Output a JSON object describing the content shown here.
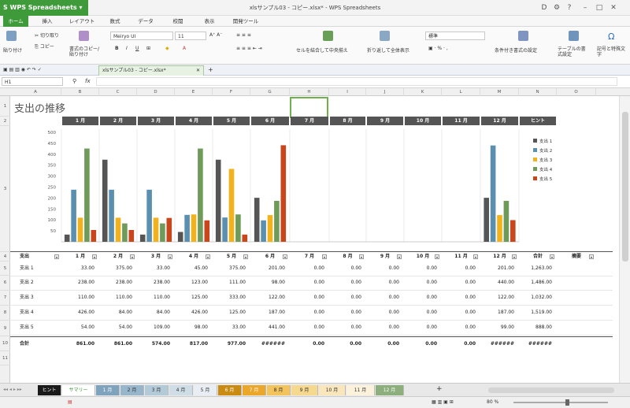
{
  "app": {
    "name": "WPS Spreadsheets",
    "title": "xlsサンプル03 - コピー.xlsx* - WPS Spreadsheets",
    "accent": "#3f9a3a"
  },
  "ribbon_tabs": [
    "ホーム",
    "挿入",
    "レイアウト",
    "数式",
    "データ",
    "校閲",
    "表示",
    "開発ツール"
  ],
  "ribbon": {
    "paste": "貼り付け",
    "cut": "切り取り",
    "copy": "コピー",
    "format_painter": "書式のコピー/貼り付け",
    "font": "Meiryo UI",
    "font_size": "11",
    "merge": "セルを結合して中央揃え",
    "wrap": "折り返して全体表示",
    "number_format": "標準",
    "conditional": "条件付き書式の設定",
    "table_format": "テーブルの書式設定",
    "symbols": "記号と特殊文字"
  },
  "doc_tab": "xlsサンプル03 - コピー.xlsx*",
  "formula": {
    "cell_ref": "H1",
    "fx": "fx"
  },
  "columns": [
    "A",
    "B",
    "C",
    "D",
    "E",
    "F",
    "G",
    "H",
    "I",
    "J",
    "K",
    "L",
    "M",
    "N",
    "O"
  ],
  "rows": [
    "1",
    "2",
    "3",
    "4",
    "5",
    "6",
    "7",
    "8",
    "9",
    "10",
    "11"
  ],
  "sheet_title": "支出の推移",
  "month_headers": [
    "1 月",
    "2 月",
    "3 月",
    "4 月",
    "5 月",
    "6 月",
    "7 月",
    "8 月",
    "9 月",
    "10 月",
    "11 月",
    "12 月",
    "ヒント"
  ],
  "table": {
    "header": [
      "支出",
      "1 月",
      "2 月",
      "3 月",
      "4 月",
      "5 月",
      "6 月",
      "7 月",
      "8 月",
      "9 月",
      "10 月",
      "11 月",
      "12 月",
      "合計",
      "摘要"
    ],
    "rows": [
      [
        "支出 1",
        "33.00",
        "375.00",
        "33.00",
        "45.00",
        "375.00",
        "201.00",
        "0.00",
        "0.00",
        "0.00",
        "0.00",
        "0.00",
        "201.00",
        "1,263.00"
      ],
      [
        "支出 2",
        "238.00",
        "238.00",
        "238.00",
        "123.00",
        "111.00",
        "98.00",
        "0.00",
        "0.00",
        "0.00",
        "0.00",
        "0.00",
        "440.00",
        "1,486.00"
      ],
      [
        "支出 3",
        "110.00",
        "110.00",
        "110.00",
        "125.00",
        "333.00",
        "122.00",
        "0.00",
        "0.00",
        "0.00",
        "0.00",
        "0.00",
        "122.00",
        "1,032.00"
      ],
      [
        "支出 4",
        "426.00",
        "84.00",
        "84.00",
        "426.00",
        "125.00",
        "187.00",
        "0.00",
        "0.00",
        "0.00",
        "0.00",
        "0.00",
        "187.00",
        "1,519.00"
      ],
      [
        "支出 5",
        "54.00",
        "54.00",
        "109.00",
        "98.00",
        "33.00",
        "441.00",
        "0.00",
        "0.00",
        "0.00",
        "0.00",
        "0.00",
        "99.00",
        "888.00"
      ]
    ],
    "total": [
      "合計",
      "861.00",
      "861.00",
      "574.00",
      "817.00",
      "977.00",
      "######",
      "0.00",
      "0.00",
      "0.00",
      "0.00",
      "0.00",
      "######",
      "######"
    ]
  },
  "chart_data": {
    "type": "bar",
    "categories": [
      "1 月",
      "2 月",
      "3 月",
      "4 月",
      "5 月",
      "6 月",
      "7 月",
      "8 月",
      "9 月",
      "10 月",
      "11 月",
      "12 月"
    ],
    "series": [
      {
        "name": "支出 1",
        "color": "#555555",
        "values": [
          33,
          375,
          33,
          45,
          375,
          201,
          0,
          0,
          0,
          0,
          0,
          201
        ]
      },
      {
        "name": "支出 2",
        "color": "#5b8fb0",
        "values": [
          238,
          238,
          238,
          123,
          111,
          98,
          0,
          0,
          0,
          0,
          0,
          440
        ]
      },
      {
        "name": "支出 3",
        "color": "#f2b21b",
        "values": [
          110,
          110,
          110,
          125,
          333,
          122,
          0,
          0,
          0,
          0,
          0,
          122
        ]
      },
      {
        "name": "支出 4",
        "color": "#6e9a5a",
        "values": [
          426,
          84,
          84,
          426,
          125,
          187,
          0,
          0,
          0,
          0,
          0,
          187
        ]
      },
      {
        "name": "支出 5",
        "color": "#c9461c",
        "values": [
          54,
          54,
          109,
          98,
          33,
          441,
          0,
          0,
          0,
          0,
          0,
          99
        ]
      }
    ],
    "yticks": [
      "500",
      "450",
      "400",
      "350",
      "300",
      "250",
      "200",
      "150",
      "100",
      "50"
    ],
    "ylim": [
      0,
      500
    ],
    "legend": "right",
    "grid": "vertical"
  },
  "sheet_tabs": [
    {
      "label": "ヒント",
      "bg": "#1a1a1a",
      "fg": "#ffffff"
    },
    {
      "label": "サマリー",
      "bg": "#ffffff",
      "fg": "#3f9a3a"
    },
    {
      "label": "1 月",
      "bg": "#7fa3bc",
      "fg": "#ffffff"
    },
    {
      "label": "2 月",
      "bg": "#98b6cb",
      "fg": "#333333"
    },
    {
      "label": "3 月",
      "bg": "#b3cad9",
      "fg": "#333333"
    },
    {
      "label": "4 月",
      "bg": "#cfdde7",
      "fg": "#333333"
    },
    {
      "label": "5 月",
      "bg": "#e8eef3",
      "fg": "#333333"
    },
    {
      "label": "6 月",
      "bg": "#c98b12",
      "fg": "#ffffff"
    },
    {
      "label": "7 月",
      "bg": "#eba72a",
      "fg": "#ffffff"
    },
    {
      "label": "8 月",
      "bg": "#f3c35c",
      "fg": "#333333"
    },
    {
      "label": "9 月",
      "bg": "#f6d88e",
      "fg": "#333333"
    },
    {
      "label": "10 月",
      "bg": "#f9e7bb",
      "fg": "#333333"
    },
    {
      "label": "11 月",
      "bg": "#fcf2dc",
      "fg": "#333333"
    },
    {
      "label": "12 月",
      "bg": "#8dae7d",
      "fg": "#ffffff"
    }
  ],
  "status": {
    "zoom": "80 %"
  }
}
